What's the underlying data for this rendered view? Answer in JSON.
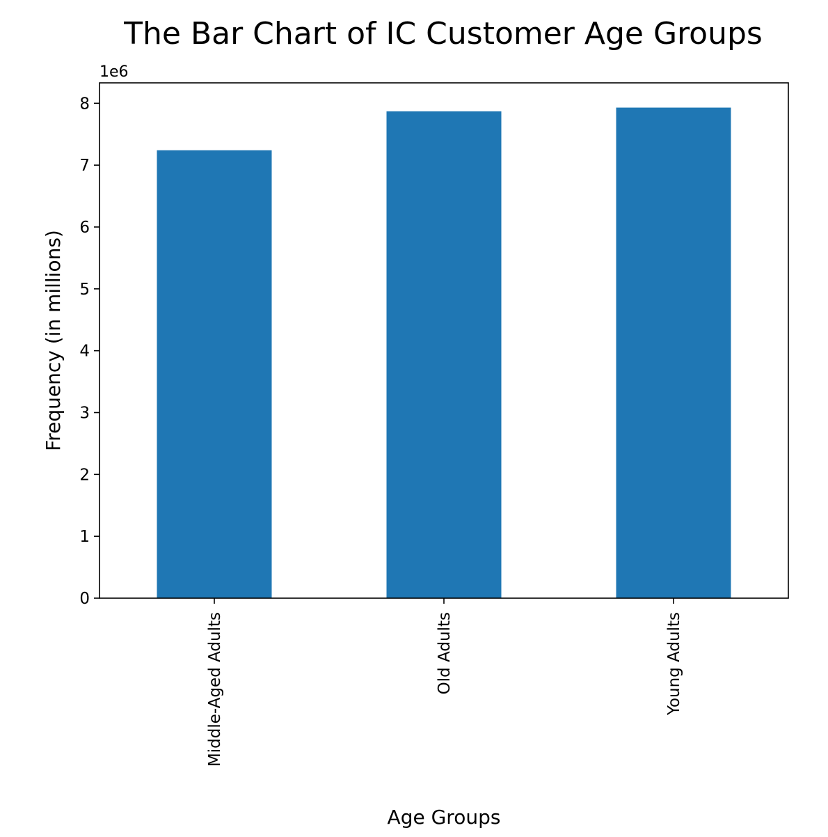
{
  "chart_data": {
    "type": "bar",
    "title": "The Bar Chart of IC Customer Age Groups",
    "xlabel": "Age Groups",
    "ylabel": "Frequency (in millions)",
    "y_offset_label": "1e6",
    "categories": [
      "Middle-Aged Adults",
      "Old Adults",
      "Young Adults"
    ],
    "values": [
      7.24,
      7.87,
      7.93
    ],
    "ylim": [
      0,
      8.33
    ],
    "yticks": [
      0,
      1,
      2,
      3,
      4,
      5,
      6,
      7,
      8
    ],
    "ytick_labels": [
      "0",
      "1",
      "2",
      "3",
      "4",
      "5",
      "6",
      "7",
      "8"
    ],
    "bar_color": "#1f77b4",
    "grid": false,
    "legend": "none"
  }
}
